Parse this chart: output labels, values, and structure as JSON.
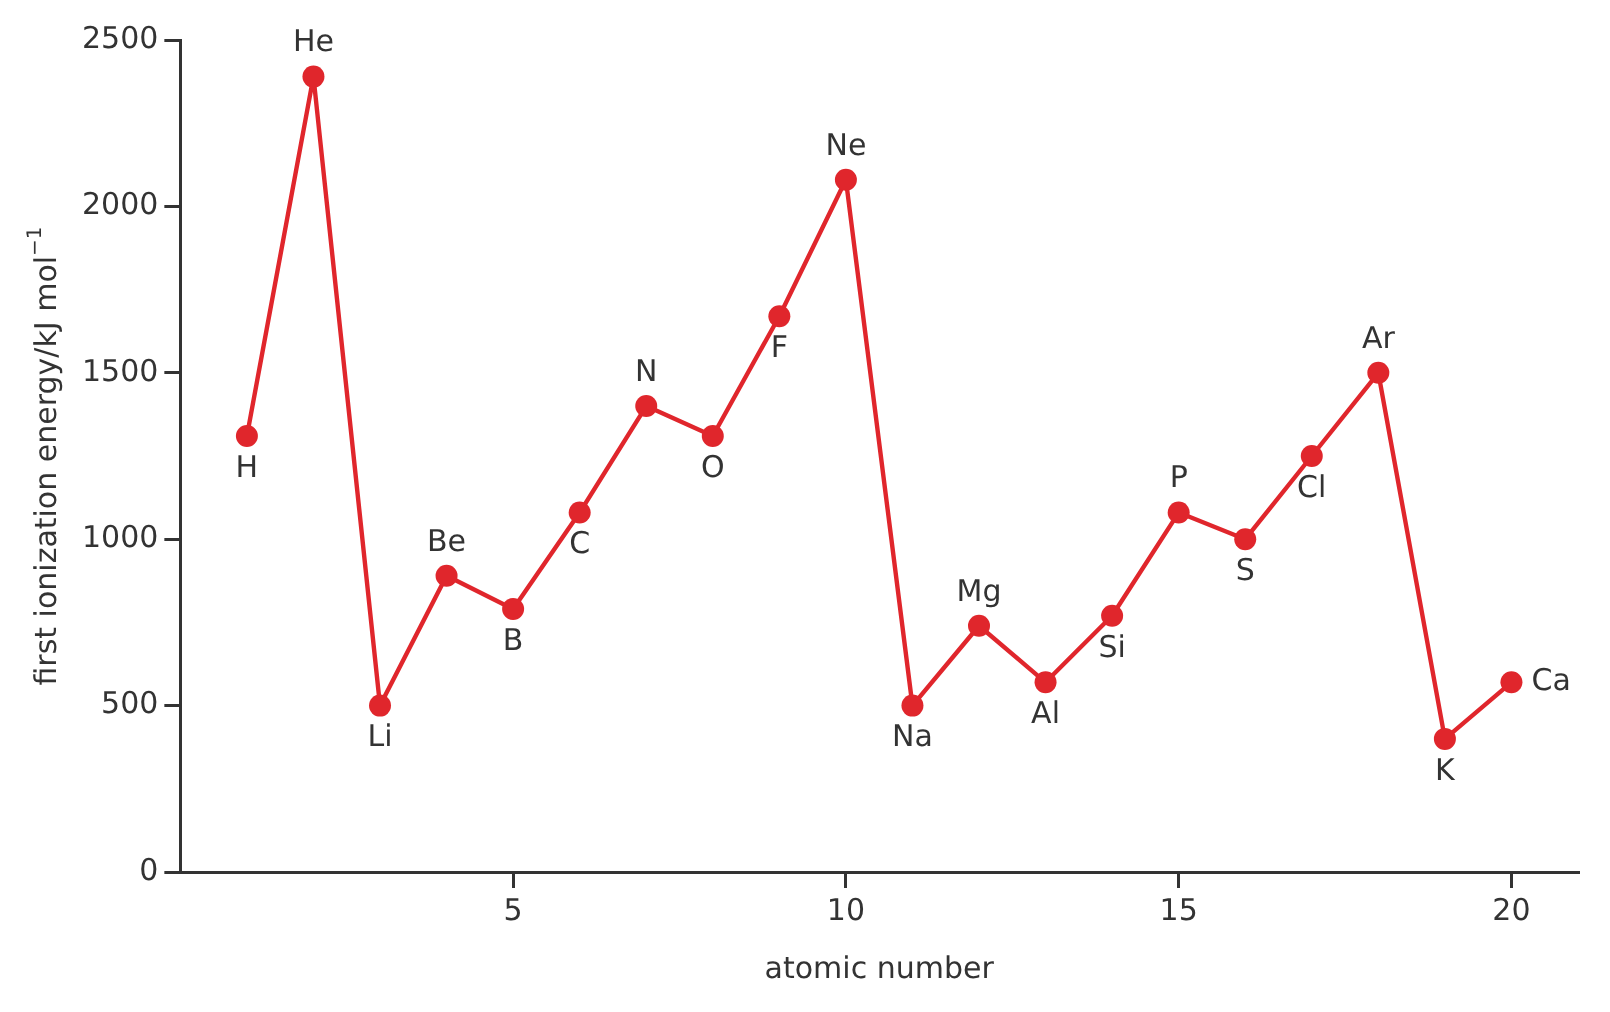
{
  "chart_data": {
    "type": "line",
    "xlabel": "atomic number",
    "ylabel": "first ionization energy/kJ mol$^{−1}$",
    "x": [
      1,
      2,
      3,
      4,
      5,
      6,
      7,
      8,
      9,
      10,
      11,
      12,
      13,
      14,
      15,
      16,
      17,
      18,
      19,
      20
    ],
    "series": [
      {
        "color": "#e0262c",
        "values": [
          1310,
          2390,
          500,
          890,
          790,
          1080,
          1400,
          1310,
          1670,
          2080,
          500,
          740,
          570,
          770,
          1080,
          1000,
          1250,
          1500,
          400,
          570
        ]
      }
    ],
    "xlim": [
      0,
      21
    ],
    "xticks": [
      5,
      10,
      15,
      20
    ],
    "ylim": [
      0,
      2500
    ],
    "yticks": [
      0,
      500,
      1000,
      1500,
      2000,
      2500
    ],
    "grid": false,
    "legend": false,
    "marker": "circle",
    "line_style": "solid",
    "annotations": [
      {
        "text": "H",
        "x": 1,
        "y": 1310
      },
      {
        "text": "He",
        "x": 2,
        "y": 2390
      },
      {
        "text": "Li",
        "x": 3,
        "y": 500
      },
      {
        "text": "Be",
        "x": 4,
        "y": 890
      },
      {
        "text": "B",
        "x": 5,
        "y": 790
      },
      {
        "text": "C",
        "x": 6,
        "y": 1080
      },
      {
        "text": "N",
        "x": 7,
        "y": 1400
      },
      {
        "text": "O",
        "x": 8,
        "y": 1310
      },
      {
        "text": "F",
        "x": 9,
        "y": 1670
      },
      {
        "text": "Ne",
        "x": 10,
        "y": 2080
      },
      {
        "text": "Na",
        "x": 11,
        "y": 500
      },
      {
        "text": "Mg",
        "x": 12,
        "y": 740
      },
      {
        "text": "Al",
        "x": 13,
        "y": 570
      },
      {
        "text": "Si",
        "x": 14,
        "y": 770
      },
      {
        "text": "P",
        "x": 15,
        "y": 1080
      },
      {
        "text": "S",
        "x": 16,
        "y": 1000
      },
      {
        "text": "Cl",
        "x": 17,
        "y": 1250
      },
      {
        "text": "Ar",
        "x": 18,
        "y": 1500
      },
      {
        "text": "K",
        "x": 19,
        "y": 400
      },
      {
        "text": "Ca",
        "x": 20,
        "y": 570
      }
    ]
  }
}
